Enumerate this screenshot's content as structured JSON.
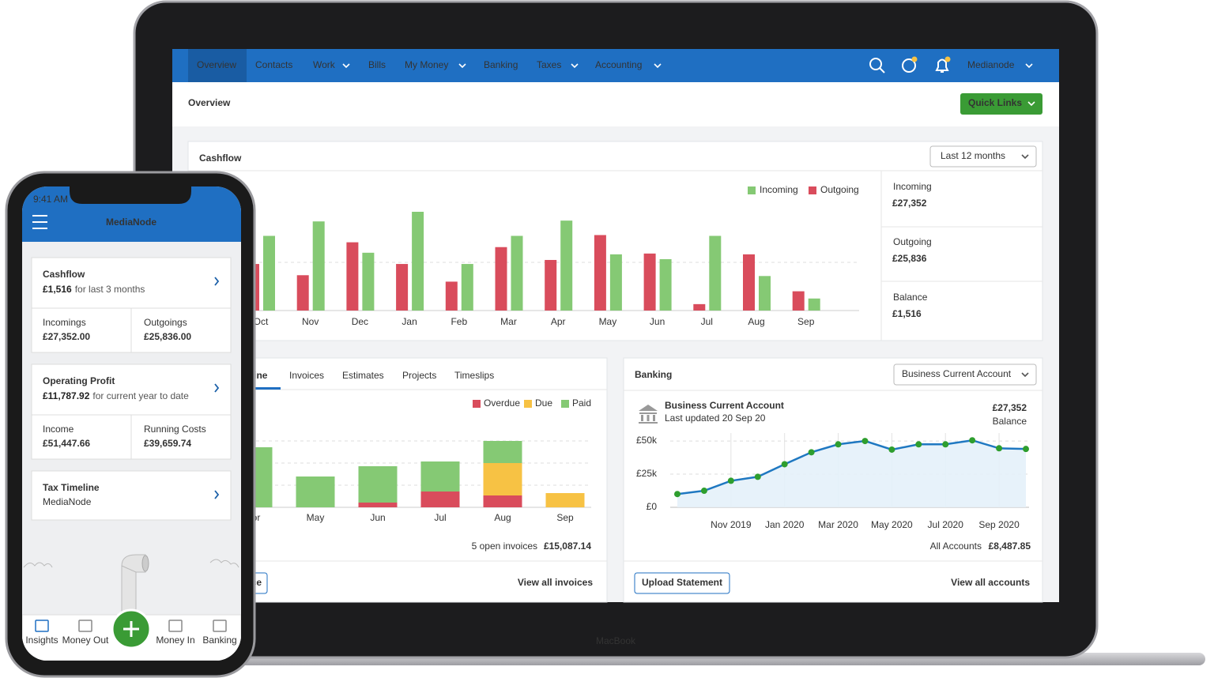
{
  "nav": {
    "items": [
      "Overview",
      "Contacts",
      "Work",
      "Bills",
      "My Money",
      "Banking",
      "Taxes",
      "Accounting"
    ],
    "account": "Medianode"
  },
  "page": {
    "title": "Overview",
    "quick_links": "Quick Links"
  },
  "cashflow": {
    "title": "Cashflow",
    "period": "Last 12 months",
    "summary": [
      {
        "label": "Incoming",
        "value": "£27,352"
      },
      {
        "label": "Outgoing",
        "value": "£25,836"
      },
      {
        "label": "Balance",
        "value": "£1,516"
      }
    ]
  },
  "invoices": {
    "tabs": [
      "Timeline",
      "Invoices",
      "Estimates",
      "Projects",
      "Timeslips"
    ],
    "open_count": "5 open invoices",
    "open_total": "£15,087.14",
    "create_button": "Create Invoice",
    "view_all": "View all invoices"
  },
  "banking": {
    "title": "Banking",
    "account_select": "Business Current Account",
    "account_name": "Business Current Account",
    "last_updated": "Last updated 20 Sep 20",
    "balance": "£27,352",
    "balance_label": "Balance",
    "all_accounts_label": "All Accounts",
    "all_accounts_total": "£8,487.85",
    "upload_button": "Upload Statement",
    "view_all": "View all accounts"
  },
  "chart_data": [
    {
      "type": "bar",
      "categories": [
        "Oct",
        "Nov",
        "Dec",
        "Jan",
        "Feb",
        "Mar",
        "Apr",
        "May",
        "Jun",
        "Jul",
        "Aug",
        "Sep"
      ],
      "series": [
        {
          "name": "Incoming",
          "color": "#85c974",
          "values": [
            93,
            111,
            72,
            123,
            58,
            93,
            112,
            70,
            64,
            93,
            43,
            15
          ]
        },
        {
          "name": "Outgoing",
          "color": "#d94c5c",
          "values": [
            58,
            44,
            85,
            58,
            36,
            79,
            63,
            94,
            71,
            8,
            70,
            24
          ]
        }
      ]
    },
    {
      "type": "stacked_bar",
      "categories": [
        "Apr",
        "May",
        "Jun",
        "Jul",
        "Aug",
        "Sep"
      ],
      "series": [
        {
          "name": "Overdue",
          "color": "#d94c5c",
          "values": [
            0,
            0,
            6,
            20,
            15,
            0
          ]
        },
        {
          "name": "Due",
          "color": "#f7c244",
          "values": [
            0,
            0,
            0,
            0,
            41,
            18
          ]
        },
        {
          "name": "Paid",
          "color": "#85c974",
          "values": [
            76,
            39,
            46,
            38,
            28,
            0
          ]
        }
      ]
    },
    {
      "type": "area",
      "categories": [
        null,
        null,
        "Nov 2019",
        null,
        "Jan 2020",
        null,
        "Mar 2020",
        null,
        "May 2020",
        null,
        "Jul 2020",
        null,
        "Sep 2020",
        null
      ],
      "values": [
        10000,
        12500,
        20000,
        23000,
        32500,
        41500,
        47500,
        50000,
        43500,
        47500,
        47500,
        50500,
        44500,
        44000
      ],
      "color": "#1f78c1",
      "marker_color": "#2e9e2e",
      "ylim": [
        0,
        56000
      ],
      "yticks": [
        {
          "value": 0,
          "label": "£0"
        },
        {
          "value": 25000,
          "label": "£25k"
        },
        {
          "value": 50000,
          "label": "£50k"
        }
      ]
    }
  ],
  "device": {
    "laptop_brand": "MacBook"
  },
  "phone": {
    "status_time": "9:41 AM",
    "app_title": "MediaNode",
    "cards": [
      {
        "title": "Cashflow",
        "amount": "£1,516",
        "caption": "for last 3 months",
        "cells": [
          {
            "label": "Incomings",
            "value": "£27,352.00"
          },
          {
            "label": "Outgoings",
            "value": "£25,836.00"
          }
        ]
      },
      {
        "title": "Operating Profit",
        "amount": "£11,787.92",
        "caption": "for current year to date",
        "cells": [
          {
            "label": "Income",
            "value": "£51,447.66"
          },
          {
            "label": "Running Costs",
            "value": "£39,659.74"
          }
        ]
      },
      {
        "title": "Tax Timeline",
        "subtitle": "MediaNode"
      }
    ],
    "tabs": [
      "Insights",
      "Money Out",
      "Money In",
      "Banking"
    ]
  }
}
